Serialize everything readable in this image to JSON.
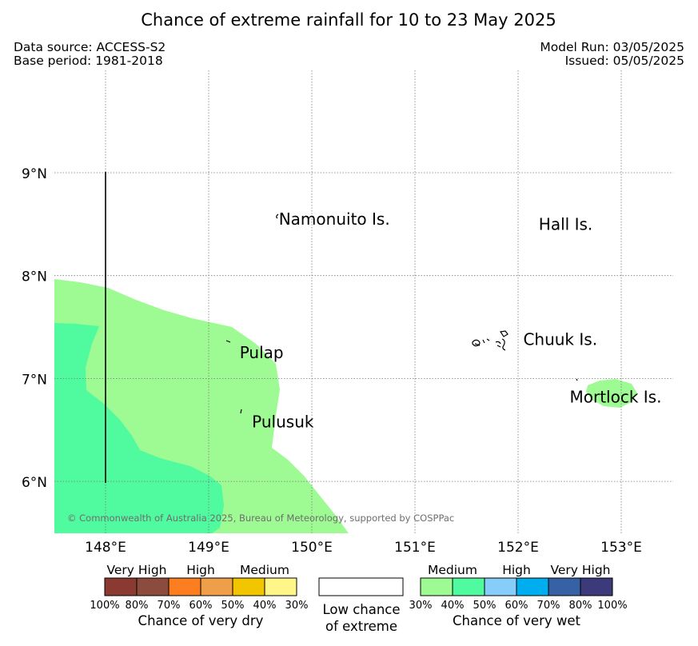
{
  "title": "Chance of extreme rainfall for 10 to 23 May 2025",
  "header": {
    "data_source": "Data source: ACCESS-S2",
    "base_period": "Base period: 1981-2018",
    "model_run": "Model Run: 03/05/2025",
    "issued": "Issued: 05/05/2025"
  },
  "map": {
    "lat_ticks": [
      {
        "value": 9,
        "label": "9°N"
      },
      {
        "value": 8,
        "label": "8°N"
      },
      {
        "value": 7,
        "label": "7°N"
      },
      {
        "value": 6,
        "label": "6°N"
      }
    ],
    "lon_ticks": [
      {
        "value": 148,
        "label": "148°E"
      },
      {
        "value": 149,
        "label": "149°E"
      },
      {
        "value": 150,
        "label": "150°E"
      },
      {
        "value": 151,
        "label": "151°E"
      },
      {
        "value": 152,
        "label": "152°E"
      },
      {
        "value": 153,
        "label": "153°E"
      }
    ],
    "lon_range": [
      147.5,
      153.5
    ],
    "lat_range": [
      5.5,
      10
    ],
    "places": [
      {
        "name": "Namonuito Is.",
        "lon": 149.68,
        "lat": 8.55
      },
      {
        "name": "Hall Is.",
        "lon": 152.2,
        "lat": 8.5
      },
      {
        "name": "Pulap",
        "lon": 149.3,
        "lat": 7.25
      },
      {
        "name": "Chuuk Is.",
        "lon": 152.05,
        "lat": 7.38
      },
      {
        "name": "Mortlock Is.",
        "lon": 152.5,
        "lat": 6.82
      },
      {
        "name": "Pulusuk",
        "lon": 149.42,
        "lat": 6.58
      }
    ],
    "copyright": "© Commonwealth of Australia 2025, Bureau of Meteorology, supported by COSPPac",
    "colors": {
      "wet_30_40": "#9efa92",
      "wet_40_50": "#50fa9e",
      "grid": "#888888"
    }
  },
  "legend": {
    "dry": {
      "levels": [
        {
          "label": "Very High",
          "color_pair": [
            "#8b3a32",
            "#8b4c3e"
          ]
        },
        {
          "label": "High",
          "color_pair": [
            "#fd7e21",
            "#ef9e4a"
          ]
        },
        {
          "label": "Medium",
          "color_pair": [
            "#f1c500",
            "#fef689"
          ]
        }
      ],
      "colors": [
        "#8b3a32",
        "#8b4c3e",
        "#fd7e21",
        "#ef9e4a",
        "#f1c500",
        "#fef689"
      ],
      "ticks": [
        "100%",
        "80%",
        "70%",
        "60%",
        "50%",
        "40%",
        "30%"
      ],
      "caption": "Chance of very dry"
    },
    "low": {
      "line1": "Low chance",
      "line2": "of extreme",
      "color": "#ffffff"
    },
    "wet": {
      "levels": [
        {
          "label": "Medium"
        },
        {
          "label": "High"
        },
        {
          "label": "Very High"
        }
      ],
      "colors": [
        "#9efa92",
        "#50fa9e",
        "#87cdfa",
        "#00aeef",
        "#3662a5",
        "#3d3a7b"
      ],
      "ticks": [
        "30%",
        "40%",
        "50%",
        "60%",
        "70%",
        "80%",
        "100%"
      ],
      "caption": "Chance of very wet"
    }
  }
}
